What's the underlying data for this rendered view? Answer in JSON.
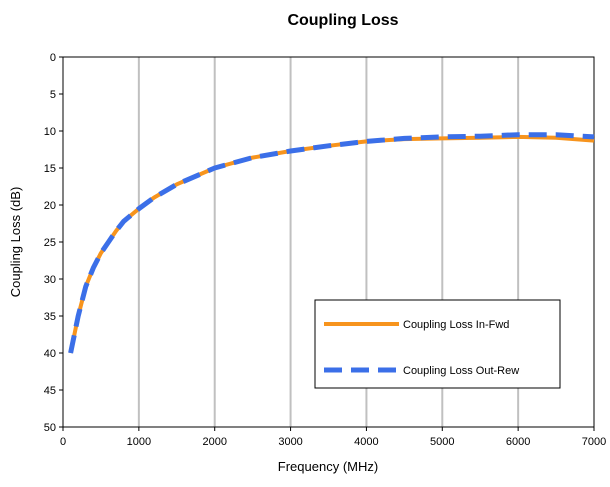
{
  "chart_data": {
    "type": "line",
    "title": "Coupling Loss",
    "xlabel": "Frequency (MHz)",
    "ylabel": "Coupling Loss (dB)",
    "xlim": [
      0,
      7000
    ],
    "ylim": [
      0,
      50
    ],
    "y_inverted": true,
    "x_ticks": [
      "0",
      "1000",
      "2000",
      "3000",
      "4000",
      "5000",
      "6000",
      "7000"
    ],
    "y_ticks": [
      "0",
      "5",
      "10",
      "15",
      "20",
      "25",
      "30",
      "35",
      "40",
      "45",
      "50"
    ],
    "grid": "vertical",
    "legend_position": "bottom-right",
    "series": [
      {
        "name": "Coupling Loss In-Fwd",
        "color": "#F7941D",
        "style": "solid",
        "x": [
          100,
          200,
          300,
          400,
          500,
          600,
          700,
          800,
          1000,
          1200,
          1500,
          2000,
          2500,
          3000,
          3500,
          4000,
          4500,
          5000,
          5500,
          6000,
          6500,
          7000
        ],
        "y": [
          40,
          35,
          31,
          28.5,
          26.5,
          25,
          23.5,
          22.2,
          20.5,
          19,
          17.2,
          15,
          13.6,
          12.7,
          12,
          11.4,
          11.1,
          11,
          10.9,
          10.8,
          10.9,
          11.3
        ]
      },
      {
        "name": "Coupling Loss Out-Rew",
        "color": "#3B6FE8",
        "style": "dashed",
        "x": [
          100,
          200,
          300,
          400,
          500,
          600,
          700,
          800,
          1000,
          1200,
          1500,
          2000,
          2500,
          3000,
          3500,
          4000,
          4500,
          5000,
          5500,
          6000,
          6500,
          7000
        ],
        "y": [
          40,
          35,
          31,
          28.5,
          26.5,
          25,
          23.5,
          22.2,
          20.5,
          19,
          17.2,
          15,
          13.6,
          12.7,
          12,
          11.4,
          11,
          10.8,
          10.7,
          10.5,
          10.5,
          10.8
        ]
      }
    ]
  }
}
